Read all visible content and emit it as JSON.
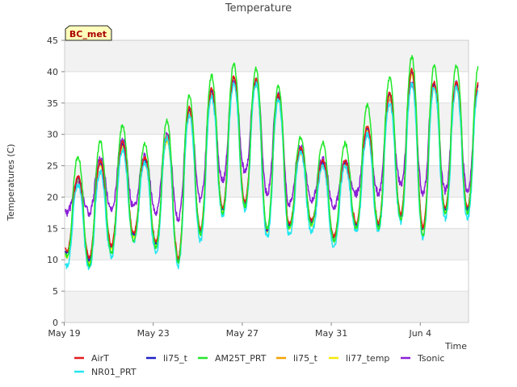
{
  "chart_data": {
    "type": "line",
    "title": "Temperature",
    "badge": "BC_met",
    "xlabel": "Time",
    "ylabel": "Temperatures (C)",
    "xlim": [
      0,
      19
    ],
    "ylim": [
      0,
      45
    ],
    "yticks": [
      0,
      5,
      10,
      15,
      20,
      25,
      30,
      35,
      40,
      45
    ],
    "xticks": [
      {
        "label": "May 19",
        "day": 0
      },
      {
        "label": "May 23",
        "day": 4
      },
      {
        "label": "May 27",
        "day": 8
      },
      {
        "label": "May 31",
        "day": 12
      },
      {
        "label": "Jun 4",
        "day": 16
      }
    ],
    "grid": true,
    "legend_position": "bottom",
    "colors": {
      "AirT": "#e41a1c",
      "li75_t_blue": "#1f1fc8",
      "AM25T_PRT": "#22e82a",
      "li75_t_orange": "#f5a000",
      "li77_temp": "#f5e80a",
      "Tsonic": "#8a1fd6",
      "NR01_PRT": "#22e6f0"
    },
    "legend": [
      {
        "name": "AirT",
        "color": "#e41a1c"
      },
      {
        "name": "li75_t",
        "color": "#1f1fc8"
      },
      {
        "name": "AM25T_PRT",
        "color": "#22e82a"
      },
      {
        "name": "li75_t",
        "color": "#f5a000"
      },
      {
        "name": "li77_temp",
        "color": "#f5e80a"
      },
      {
        "name": "Tsonic",
        "color": "#8a1fd6"
      },
      {
        "name": "NR01_PRT",
        "color": "#22e6f0"
      }
    ],
    "daily_extremes": {
      "days": [
        0,
        1,
        2,
        3,
        4,
        5,
        6,
        7,
        8,
        9,
        10,
        11,
        12,
        13,
        14,
        15,
        16,
        17,
        18
      ],
      "AM25T_PRT_max": [
        26.5,
        28.8,
        31.5,
        28.5,
        32.2,
        36.2,
        39.4,
        41.2,
        40.5,
        37.6,
        29.5,
        28.7,
        28.6,
        34.7,
        39.0,
        42.4,
        41.0,
        41.0,
        41.0
      ],
      "AM25T_PRT_min": [
        10.5,
        9.0,
        11.0,
        13.0,
        12.0,
        9.5,
        14.0,
        17.5,
        18.5,
        15.0,
        15.0,
        15.5,
        13.0,
        15.0,
        15.0,
        16.5,
        14.0,
        17.5,
        17.5
      ],
      "Tsonic_max": [
        22.5,
        26.0,
        29.0,
        26.5,
        30.0,
        33.5,
        36.5,
        38.5,
        38.5,
        36.5,
        28.0,
        26.0,
        25.5,
        30.0,
        35.5,
        38.0,
        38.0,
        38.0,
        38.0
      ],
      "Tsonic_min": [
        17.5,
        17.5,
        18.0,
        18.5,
        17.5,
        16.5,
        19.5,
        22.5,
        24.0,
        20.5,
        19.0,
        19.5,
        18.5,
        20.5,
        20.5,
        22.0,
        20.5,
        21.0,
        21.0
      ],
      "NR01_PRT_max": [
        22.0,
        24.0,
        27.5,
        25.5,
        29.5,
        33.0,
        36.0,
        38.0,
        38.0,
        35.5,
        27.0,
        25.0,
        25.0,
        30.0,
        35.0,
        38.0,
        37.5,
        37.5,
        37.5
      ],
      "NR01_PRT_min": [
        9.0,
        8.5,
        10.5,
        13.0,
        11.0,
        9.0,
        13.0,
        17.0,
        18.0,
        13.5,
        14.0,
        14.5,
        12.0,
        14.5,
        14.5,
        16.0,
        13.5,
        16.5,
        16.5
      ],
      "AirT_max": [
        23.0,
        25.5,
        28.5,
        26.0,
        29.5,
        34.0,
        37.0,
        39.0,
        38.5,
        36.0,
        27.5,
        25.5,
        25.5,
        31.0,
        36.5,
        40.0,
        38.0,
        38.0,
        38.0
      ],
      "AirT_min": [
        11.0,
        10.0,
        12.0,
        14.0,
        12.5,
        10.0,
        14.5,
        18.0,
        19.0,
        14.5,
        15.5,
        16.0,
        13.5,
        15.5,
        15.5,
        17.0,
        15.0,
        18.0,
        18.0
      ]
    },
    "series_end_day": 18.6
  }
}
